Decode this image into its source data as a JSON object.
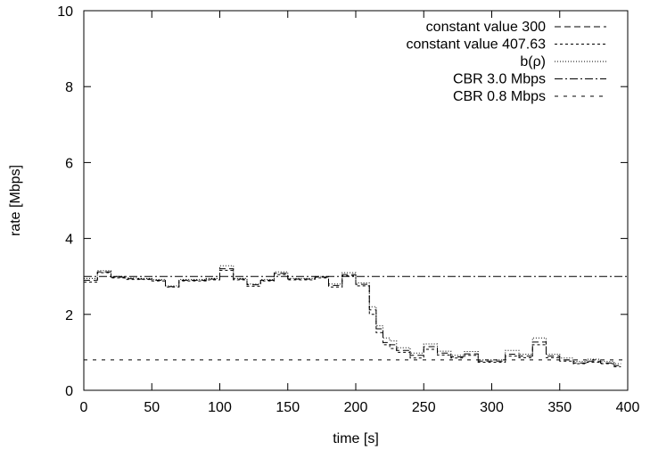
{
  "chart_data": {
    "type": "line",
    "title": "",
    "xlabel": "time [s]",
    "ylabel": "rate [Mbps]",
    "xlim": [
      0,
      400
    ],
    "ylim": [
      0,
      10
    ],
    "x_ticks": [
      "0",
      "50",
      "100",
      "150",
      "200",
      "250",
      "300",
      "350",
      "400"
    ],
    "y_ticks": [
      "0",
      "2",
      "4",
      "6",
      "8",
      "10"
    ],
    "grid": false,
    "legend_position": "top-right",
    "step_x": [
      0,
      10,
      20,
      30,
      40,
      50,
      60,
      70,
      80,
      90,
      100,
      110,
      120,
      130,
      140,
      150,
      160,
      170,
      180,
      190,
      200,
      210,
      215,
      220,
      225,
      230,
      240,
      250,
      260,
      270,
      280,
      290,
      300,
      310,
      320,
      330,
      340,
      350,
      360,
      370,
      380,
      390
    ],
    "series": [
      {
        "name": "constant value 300",
        "style": "dash",
        "values": [
          2.9,
          3.12,
          2.98,
          2.94,
          2.93,
          2.9,
          2.73,
          2.9,
          2.9,
          2.93,
          3.2,
          2.93,
          2.78,
          2.9,
          3.08,
          2.93,
          2.93,
          2.98,
          2.76,
          3.05,
          2.79,
          2.12,
          1.62,
          1.26,
          1.2,
          1.05,
          0.92,
          1.15,
          0.98,
          0.88,
          0.96,
          0.77,
          0.77,
          0.95,
          0.9,
          1.27,
          0.9,
          0.8,
          0.72,
          0.77,
          0.72,
          0.65
        ]
      },
      {
        "name": "constant value 407.63",
        "style": "short-dash",
        "values": [
          2.85,
          3.1,
          2.96,
          2.92,
          2.92,
          2.88,
          2.72,
          2.88,
          2.88,
          2.91,
          3.16,
          2.91,
          2.74,
          2.88,
          3.05,
          2.91,
          2.91,
          2.96,
          2.72,
          3.02,
          2.75,
          2.0,
          1.52,
          1.2,
          1.1,
          1.0,
          0.85,
          1.08,
          0.93,
          0.85,
          0.92,
          0.74,
          0.74,
          0.9,
          0.86,
          1.2,
          0.86,
          0.77,
          0.7,
          0.74,
          0.7,
          0.62
        ]
      },
      {
        "name": "b(ρ)",
        "style": "dot",
        "values": [
          2.95,
          3.15,
          3.0,
          2.96,
          2.95,
          2.92,
          2.75,
          2.92,
          2.92,
          2.95,
          3.28,
          2.95,
          2.8,
          2.92,
          3.12,
          2.95,
          2.95,
          3.0,
          2.8,
          3.1,
          2.83,
          2.2,
          1.7,
          1.38,
          1.3,
          1.12,
          0.98,
          1.22,
          1.03,
          0.92,
          1.02,
          0.8,
          0.8,
          1.05,
          0.95,
          1.38,
          0.95,
          0.85,
          0.76,
          0.82,
          0.76,
          0.7
        ]
      },
      {
        "name": "CBR 3.0 Mbps",
        "style": "dash-dot",
        "x": [
          0,
          400
        ],
        "values": [
          3.0,
          3.0
        ]
      },
      {
        "name": "CBR 0.8 Mbps",
        "style": "sparse-dash",
        "x": [
          0,
          400
        ],
        "values": [
          0.8,
          0.8
        ]
      }
    ]
  }
}
